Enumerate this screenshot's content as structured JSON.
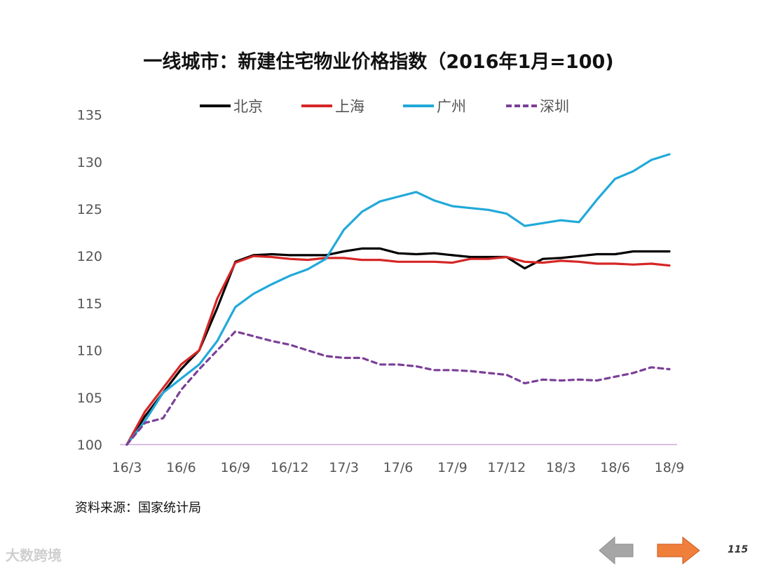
{
  "page": {
    "source": "资料来源：国家统计局",
    "watermark": "大数跨境",
    "page_number": "115"
  },
  "nav": {
    "prev_color": "#a6a6a6",
    "next_color": "#f07f3c"
  },
  "chart_data": {
    "type": "line",
    "title": "一线城市：新建住宅物业价格指数（2016年1月=100)",
    "xlabel": "",
    "ylabel": "",
    "ylim": [
      100,
      135
    ],
    "yticks": [
      100,
      105,
      110,
      115,
      120,
      125,
      130,
      135
    ],
    "x_tick_labels": [
      "16/3",
      "16/6",
      "16/9",
      "16/12",
      "17/3",
      "17/6",
      "17/9",
      "17/12",
      "18/3",
      "18/6",
      "18/9"
    ],
    "x": [
      "16/3",
      "16/4",
      "16/5",
      "16/6",
      "16/7",
      "16/8",
      "16/9",
      "16/10",
      "16/11",
      "16/12",
      "17/1",
      "17/2",
      "17/3",
      "17/4",
      "17/5",
      "17/6",
      "17/7",
      "17/8",
      "17/9",
      "17/10",
      "17/11",
      "17/12",
      "18/1",
      "18/2",
      "18/3",
      "18/4",
      "18/5",
      "18/6",
      "18/7",
      "18/8",
      "18/9"
    ],
    "legend_position": "top",
    "grid": false,
    "series": [
      {
        "name": "北京",
        "color": "#000000",
        "dash": "solid",
        "values": [
          100,
          103.0,
          105.5,
          108.0,
          110.0,
          114.5,
          119.4,
          120.1,
          120.2,
          120.1,
          120.1,
          120.1,
          120.5,
          120.8,
          120.8,
          120.3,
          120.2,
          120.3,
          120.1,
          119.9,
          119.9,
          119.9,
          118.7,
          119.7,
          119.8,
          120.0,
          120.2,
          120.2,
          120.5,
          120.5,
          120.5
        ]
      },
      {
        "name": "上海",
        "color": "#d62626",
        "dash": "solid",
        "values": [
          100,
          103.5,
          106.0,
          108.5,
          110.0,
          115.5,
          119.3,
          120.0,
          119.9,
          119.7,
          119.6,
          119.8,
          119.8,
          119.6,
          119.6,
          119.4,
          119.4,
          119.4,
          119.3,
          119.7,
          119.7,
          119.9,
          119.4,
          119.3,
          119.5,
          119.4,
          119.2,
          119.2,
          119.1,
          119.2,
          119.0
        ]
      },
      {
        "name": "广州",
        "color": "#21a9d9",
        "dash": "solid",
        "values": [
          100,
          102.5,
          105.5,
          107.0,
          108.5,
          111.0,
          114.6,
          116.0,
          117.0,
          117.9,
          118.6,
          119.7,
          122.8,
          124.7,
          125.8,
          126.3,
          126.8,
          125.9,
          125.3,
          125.1,
          124.9,
          124.5,
          123.2,
          123.5,
          123.8,
          123.6,
          126.0,
          128.2,
          129.0,
          130.2,
          130.8
        ]
      },
      {
        "name": "深圳",
        "color": "#7b3f98",
        "dash": "dashed",
        "values": [
          100,
          102.3,
          102.8,
          105.8,
          108.0,
          110.0,
          112.0,
          111.5,
          111.0,
          110.6,
          110.0,
          109.4,
          109.2,
          109.2,
          108.5,
          108.5,
          108.3,
          107.9,
          107.9,
          107.8,
          107.6,
          107.4,
          106.5,
          106.9,
          106.8,
          106.9,
          106.8,
          107.2,
          107.6,
          108.2,
          108.0
        ]
      }
    ]
  }
}
